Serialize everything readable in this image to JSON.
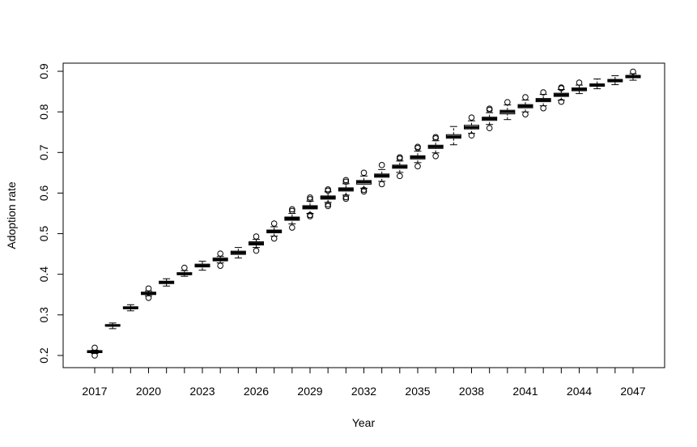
{
  "chart_data": {
    "type": "box",
    "title": "",
    "xlabel": "Year",
    "ylabel": "Adoption rate",
    "ylim": [
      0.17,
      0.92
    ],
    "yticks": [
      0.2,
      0.3,
      0.4,
      0.5,
      0.6,
      0.7,
      0.8,
      0.9
    ],
    "ytick_labels": [
      "0.2",
      "0.3",
      "0.4",
      "0.5",
      "0.6",
      "0.7",
      "0.8",
      "0.9"
    ],
    "xtick_labels": [
      "2017",
      "2020",
      "2023",
      "2026",
      "2029",
      "2032",
      "2035",
      "2038",
      "2041",
      "2044",
      "2047"
    ],
    "grid": false,
    "categories": [
      "2017",
      "2018",
      "2019",
      "2020",
      "2021",
      "2022",
      "2023",
      "2024",
      "2025",
      "2026",
      "2027",
      "2028",
      "2029",
      "2030",
      "2031",
      "2032",
      "2033",
      "2034",
      "2035",
      "2036",
      "2037",
      "2038",
      "2039",
      "2040",
      "2041",
      "2042",
      "2043",
      "2044",
      "2045",
      "2046",
      "2047"
    ],
    "boxes": [
      {
        "year": "2017",
        "whisker_low": 0.205,
        "q1": 0.207,
        "median": 0.209,
        "q3": 0.212,
        "whisker_high": 0.213,
        "outliers": [
          0.2,
          0.219
        ]
      },
      {
        "year": "2018",
        "whisker_low": 0.266,
        "q1": 0.272,
        "median": 0.274,
        "q3": 0.276,
        "whisker_high": 0.28,
        "outliers": []
      },
      {
        "year": "2019",
        "whisker_low": 0.31,
        "q1": 0.315,
        "median": 0.317,
        "q3": 0.32,
        "whisker_high": 0.325,
        "outliers": []
      },
      {
        "year": "2020",
        "whisker_low": 0.347,
        "q1": 0.35,
        "median": 0.353,
        "q3": 0.356,
        "whisker_high": 0.359,
        "outliers": [
          0.342,
          0.365
        ]
      },
      {
        "year": "2021",
        "whisker_low": 0.371,
        "q1": 0.377,
        "median": 0.38,
        "q3": 0.383,
        "whisker_high": 0.389,
        "outliers": []
      },
      {
        "year": "2022",
        "whisker_low": 0.395,
        "q1": 0.399,
        "median": 0.401,
        "q3": 0.404,
        "whisker_high": 0.409,
        "outliers": [
          0.416
        ]
      },
      {
        "year": "2023",
        "whisker_low": 0.41,
        "q1": 0.418,
        "median": 0.421,
        "q3": 0.425,
        "whisker_high": 0.432,
        "outliers": []
      },
      {
        "year": "2024",
        "whisker_low": 0.428,
        "q1": 0.433,
        "median": 0.436,
        "q3": 0.44,
        "whisker_high": 0.444,
        "outliers": [
          0.421,
          0.451
        ]
      },
      {
        "year": "2025",
        "whisker_low": 0.44,
        "q1": 0.449,
        "median": 0.453,
        "q3": 0.457,
        "whisker_high": 0.466,
        "outliers": []
      },
      {
        "year": "2026",
        "whisker_low": 0.466,
        "q1": 0.472,
        "median": 0.476,
        "q3": 0.48,
        "whisker_high": 0.486,
        "outliers": [
          0.458,
          0.493
        ]
      },
      {
        "year": "2027",
        "whisker_low": 0.494,
        "q1": 0.502,
        "median": 0.505,
        "q3": 0.509,
        "whisker_high": 0.517,
        "outliers": [
          0.488,
          0.525
        ]
      },
      {
        "year": "2028",
        "whisker_low": 0.524,
        "q1": 0.533,
        "median": 0.537,
        "q3": 0.541,
        "whisker_high": 0.55,
        "outliers": [
          0.515,
          0.556,
          0.56
        ]
      },
      {
        "year": "2029",
        "whisker_low": 0.55,
        "q1": 0.561,
        "median": 0.565,
        "q3": 0.569,
        "whisker_high": 0.58,
        "outliers": [
          0.543,
          0.546,
          0.585,
          0.589
        ]
      },
      {
        "year": "2030",
        "whisker_low": 0.577,
        "q1": 0.585,
        "median": 0.589,
        "q3": 0.593,
        "whisker_high": 0.603,
        "outliers": [
          0.568,
          0.572,
          0.606,
          0.609
        ]
      },
      {
        "year": "2031",
        "whisker_low": 0.595,
        "q1": 0.605,
        "median": 0.609,
        "q3": 0.613,
        "whisker_high": 0.623,
        "outliers": [
          0.586,
          0.59,
          0.628,
          0.632
        ]
      },
      {
        "year": "2032",
        "whisker_low": 0.612,
        "q1": 0.622,
        "median": 0.627,
        "q3": 0.631,
        "whisker_high": 0.642,
        "outliers": [
          0.604,
          0.608,
          0.65
        ]
      },
      {
        "year": "2033",
        "whisker_low": 0.629,
        "q1": 0.639,
        "median": 0.643,
        "q3": 0.647,
        "whisker_high": 0.658,
        "outliers": [
          0.622,
          0.669
        ]
      },
      {
        "year": "2034",
        "whisker_low": 0.651,
        "q1": 0.661,
        "median": 0.665,
        "q3": 0.669,
        "whisker_high": 0.679,
        "outliers": [
          0.642,
          0.685,
          0.688
        ]
      },
      {
        "year": "2035",
        "whisker_low": 0.675,
        "q1": 0.684,
        "median": 0.688,
        "q3": 0.692,
        "whisker_high": 0.703,
        "outliers": [
          0.666,
          0.711,
          0.714
        ]
      },
      {
        "year": "2036",
        "whisker_low": 0.699,
        "q1": 0.71,
        "median": 0.714,
        "q3": 0.718,
        "whisker_high": 0.729,
        "outliers": [
          0.691,
          0.735,
          0.738
        ]
      },
      {
        "year": "2037",
        "whisker_low": 0.719,
        "q1": 0.735,
        "median": 0.739,
        "q3": 0.744,
        "whisker_high": 0.764,
        "outliers": []
      },
      {
        "year": "2038",
        "whisker_low": 0.747,
        "q1": 0.758,
        "median": 0.762,
        "q3": 0.767,
        "whisker_high": 0.778,
        "outliers": [
          0.742,
          0.786
        ]
      },
      {
        "year": "2039",
        "whisker_low": 0.769,
        "q1": 0.779,
        "median": 0.783,
        "q3": 0.787,
        "whisker_high": 0.798,
        "outliers": [
          0.76,
          0.805,
          0.808
        ]
      },
      {
        "year": "2040",
        "whisker_low": 0.781,
        "q1": 0.795,
        "median": 0.8,
        "q3": 0.804,
        "whisker_high": 0.817,
        "outliers": [
          0.824
        ]
      },
      {
        "year": "2041",
        "whisker_low": 0.8,
        "q1": 0.81,
        "median": 0.814,
        "q3": 0.818,
        "whisker_high": 0.829,
        "outliers": [
          0.794,
          0.836
        ]
      },
      {
        "year": "2042",
        "whisker_low": 0.815,
        "q1": 0.825,
        "median": 0.829,
        "q3": 0.833,
        "whisker_high": 0.843,
        "outliers": [
          0.809,
          0.848
        ]
      },
      {
        "year": "2043",
        "whisker_low": 0.829,
        "q1": 0.838,
        "median": 0.842,
        "q3": 0.846,
        "whisker_high": 0.855,
        "outliers": [
          0.825,
          0.858,
          0.86
        ]
      },
      {
        "year": "2044",
        "whisker_low": 0.845,
        "q1": 0.852,
        "median": 0.856,
        "q3": 0.859,
        "whisker_high": 0.866,
        "outliers": [
          0.872
        ]
      },
      {
        "year": "2045",
        "whisker_low": 0.857,
        "q1": 0.863,
        "median": 0.866,
        "q3": 0.869,
        "whisker_high": 0.881,
        "outliers": []
      },
      {
        "year": "2046",
        "whisker_low": 0.867,
        "q1": 0.874,
        "median": 0.877,
        "q3": 0.88,
        "whisker_high": 0.889,
        "outliers": []
      },
      {
        "year": "2047",
        "whisker_low": 0.878,
        "q1": 0.884,
        "median": 0.887,
        "q3": 0.89,
        "whisker_high": 0.894,
        "outliers": [
          0.899
        ]
      }
    ]
  }
}
